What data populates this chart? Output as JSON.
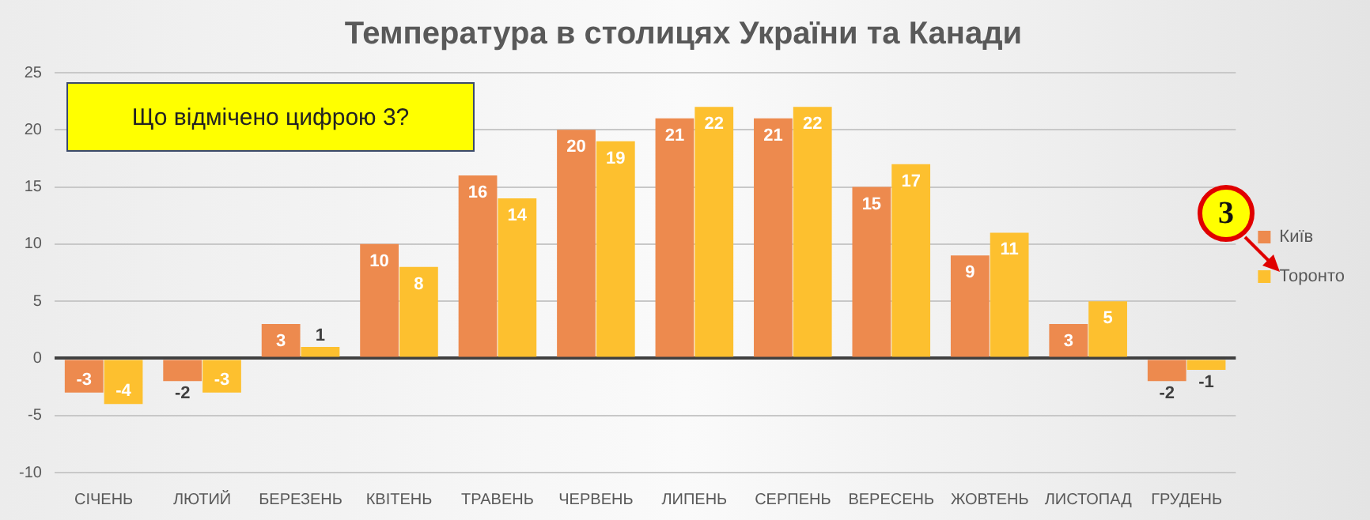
{
  "chart_data": {
    "type": "bar",
    "title": "Температура в столицях України та Канади",
    "categories": [
      "СІЧЕНЬ",
      "ЛЮТИЙ",
      "БЕРЕЗЕНЬ",
      "КВІТЕНЬ",
      "ТРАВЕНЬ",
      "ЧЕРВЕНЬ",
      "ЛИПЕНЬ",
      "СЕРПЕНЬ",
      "ВЕРЕСЕНЬ",
      "ЖОВТЕНЬ",
      "ЛИСТОПАД",
      "ГРУДЕНЬ"
    ],
    "series": [
      {
        "name": "Київ",
        "color": "#ed8a4e",
        "values": [
          -3,
          -2,
          3,
          10,
          16,
          20,
          21,
          21,
          15,
          9,
          3,
          -2
        ]
      },
      {
        "name": "Торонто",
        "color": "#fdc02f",
        "values": [
          -4,
          -3,
          1,
          8,
          14,
          19,
          22,
          22,
          17,
          11,
          5,
          -1
        ]
      }
    ],
    "ylim": [
      -10,
      25
    ],
    "yticks": [
      -10,
      -5,
      0,
      5,
      10,
      15,
      20,
      25
    ],
    "grid": "y",
    "legend": "right",
    "data_labels": true,
    "annotations": [
      "Що відмічено цифрою 3?",
      "3"
    ]
  }
}
